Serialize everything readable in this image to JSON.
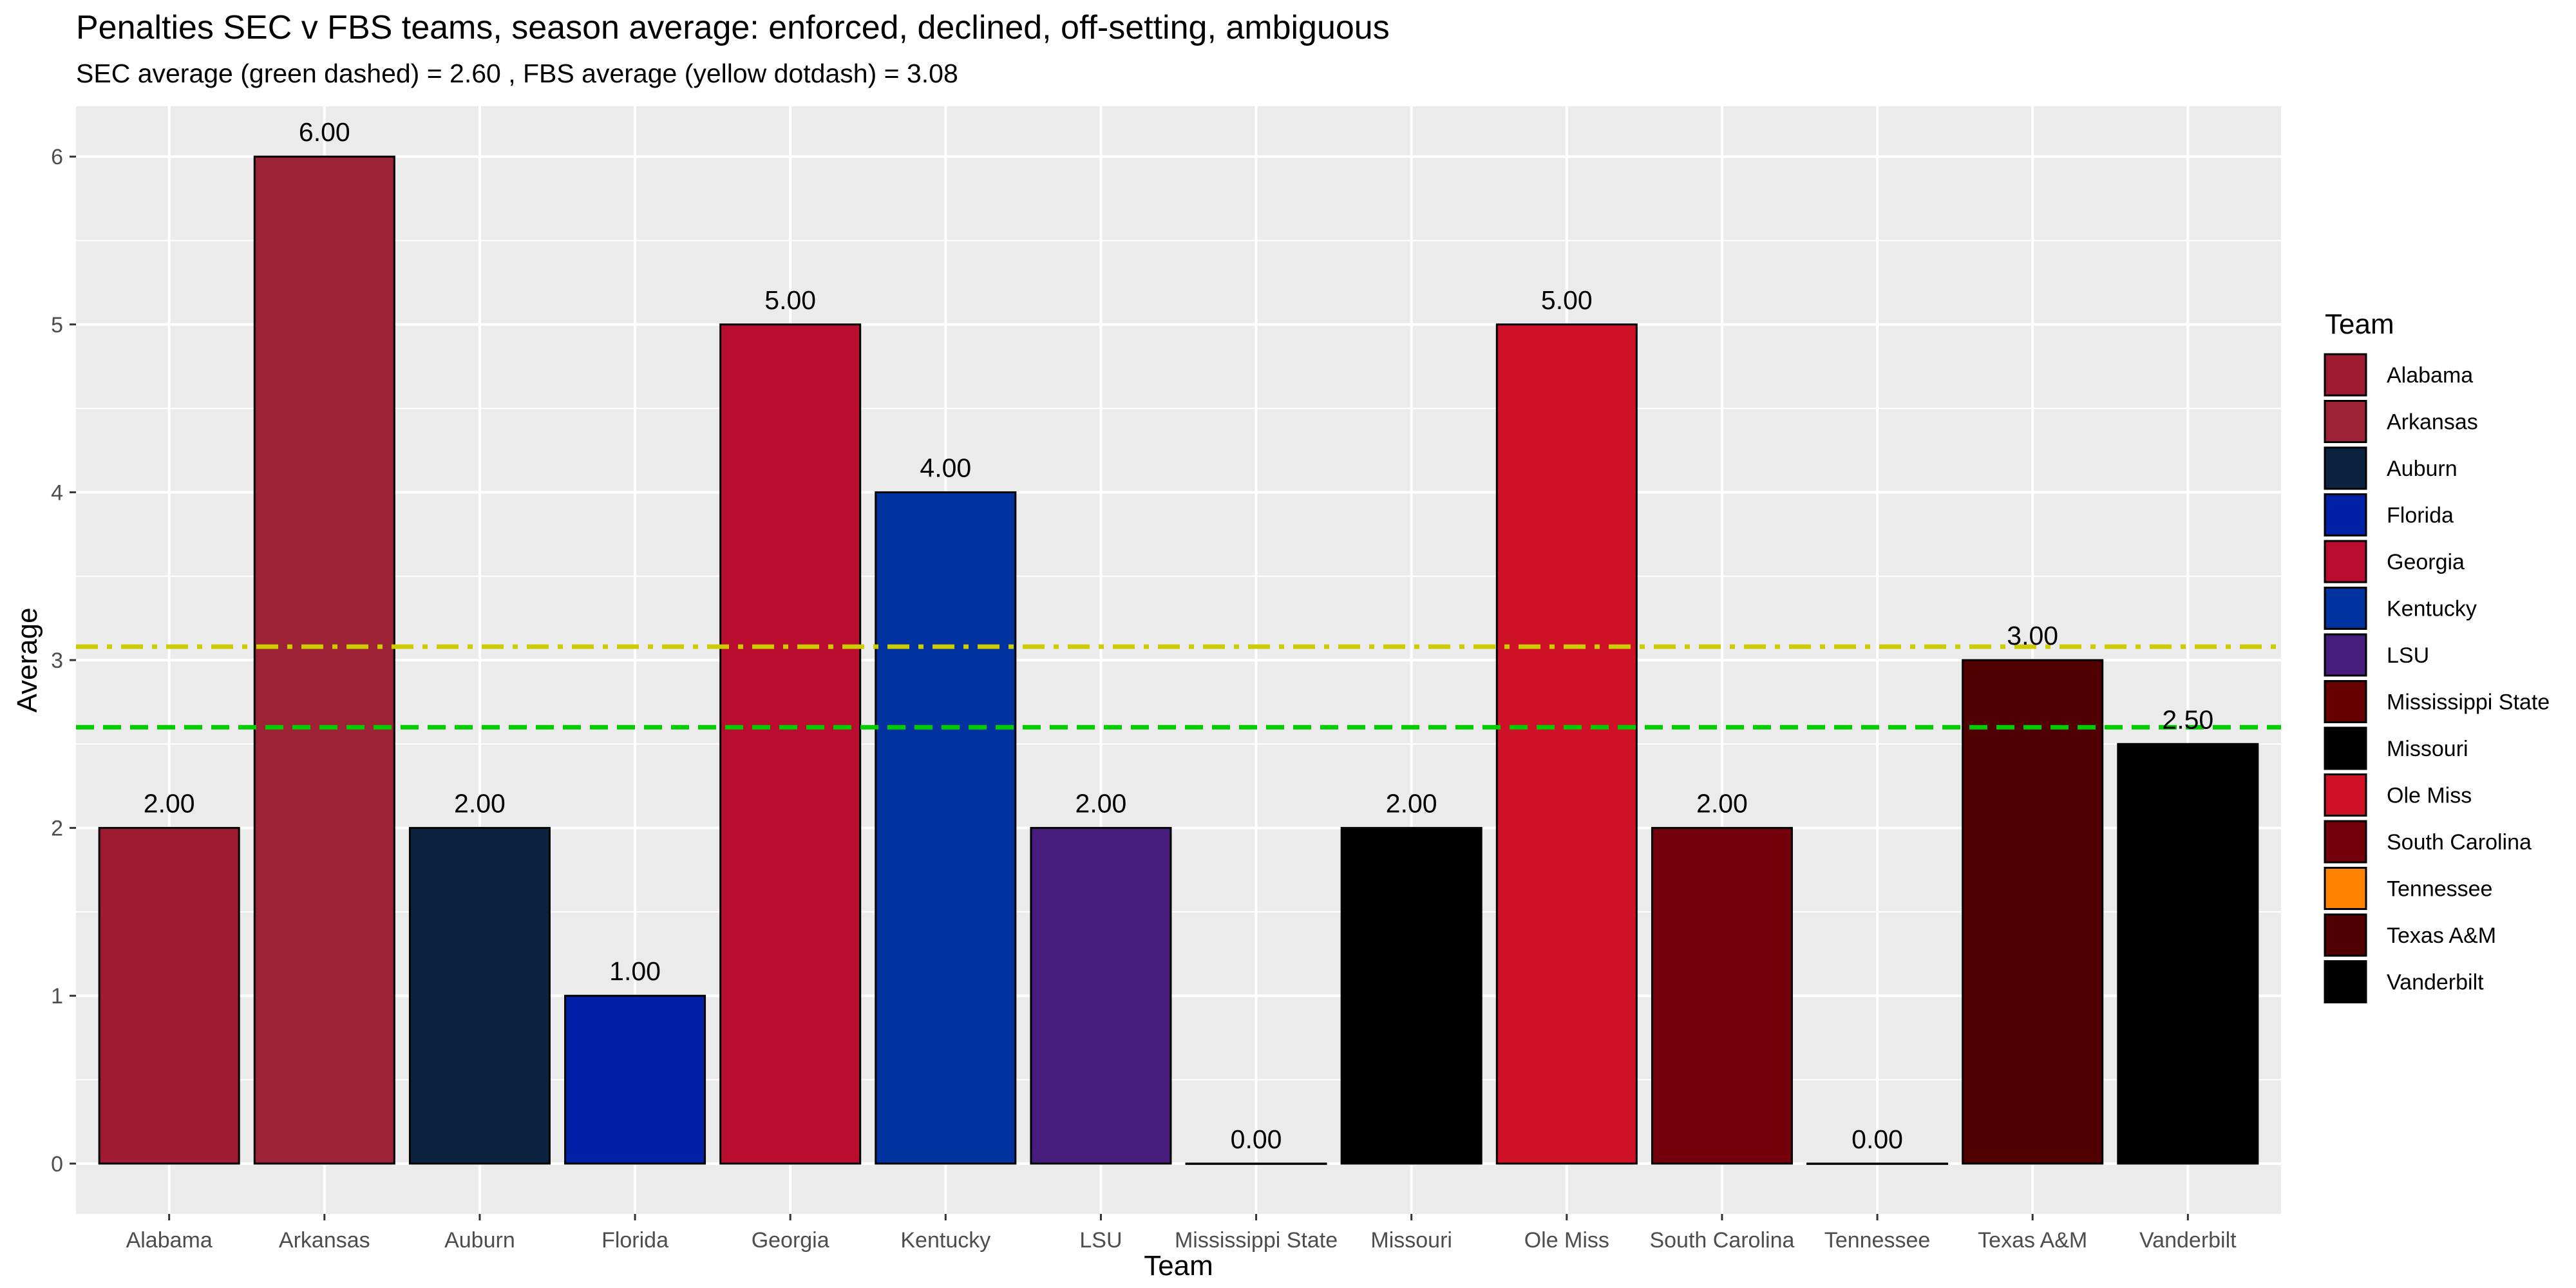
{
  "chart_data": {
    "type": "bar",
    "title": "Penalties SEC v FBS teams, season average: enforced, declined, off-setting, ambiguous",
    "subtitle": "SEC average (green dashed) =  2.60 , FBS average (yellow dotdash) =  3.08",
    "xlabel": "Team",
    "ylabel": "Average",
    "ylim": [
      -0.3,
      6.3
    ],
    "yticks": [
      0,
      1,
      2,
      3,
      4,
      5,
      6
    ],
    "grid": true,
    "legend": {
      "title": "Team",
      "placement": "right"
    },
    "categories": [
      "Alabama",
      "Arkansas",
      "Auburn",
      "Florida",
      "Georgia",
      "Kentucky",
      "LSU",
      "Mississippi State",
      "Missouri",
      "Ole Miss",
      "South Carolina",
      "Tennessee",
      "Texas A&M",
      "Vanderbilt"
    ],
    "values": [
      2.0,
      6.0,
      2.0,
      1.0,
      5.0,
      4.0,
      2.0,
      0.0,
      2.0,
      5.0,
      2.0,
      0.0,
      3.0,
      2.5
    ],
    "value_labels": [
      "2.00",
      "6.00",
      "2.00",
      "1.00",
      "5.00",
      "4.00",
      "2.00",
      "0.00",
      "2.00",
      "5.00",
      "2.00",
      "0.00",
      "3.00",
      "2.50"
    ],
    "colors": [
      "#9E1B32",
      "#9D2235",
      "#0C2340",
      "#0021A5",
      "#BA0C2F",
      "#0033A0",
      "#461D7C",
      "#660000",
      "#000000",
      "#CE1126",
      "#73000A",
      "#FF8200",
      "#500000",
      "#000000"
    ],
    "reference_lines": [
      {
        "name": "SEC average",
        "value": 2.6,
        "color": "#00CC00",
        "style": "dashed"
      },
      {
        "name": "FBS average",
        "value": 3.08,
        "color": "#CCCC00",
        "style": "dotdash"
      }
    ],
    "panel_background": "#EBEBEB",
    "grid_color": "#FFFFFF"
  }
}
